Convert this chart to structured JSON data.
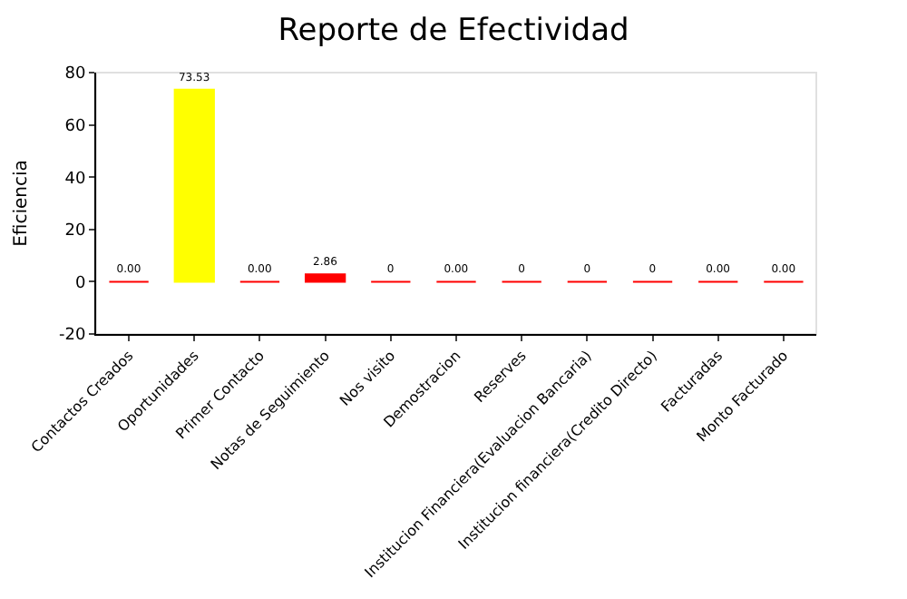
{
  "chart_data": {
    "type": "bar",
    "title": "Reporte de Efectividad",
    "ylabel": "Eficiencia",
    "categories": [
      "Contactos Creados",
      "Oportunidades",
      "Primer Contacto",
      "Notas de Seguimiento",
      "Nos visito",
      "Demostracion",
      "Reserves",
      "Institucion Financiera(Evaluacion Bancaria)",
      "Institucion financiera(Credito Directo)",
      "Facturadas",
      "Monto Facturado"
    ],
    "values": [
      0,
      73.53,
      0,
      2.86,
      0,
      0,
      0,
      0,
      0,
      0,
      0
    ],
    "value_labels": [
      "0.00",
      "73.53",
      "0.00",
      "2.86",
      "0",
      "0.00",
      "0",
      "0",
      "0",
      "0.00",
      "0.00"
    ],
    "colors": [
      "#ff0000",
      "#ffff00",
      "#ff0000",
      "#ff0000",
      "#ff0000",
      "#ff0000",
      "#ff0000",
      "#ff0000",
      "#ff0000",
      "#ff0000",
      "#ff0000"
    ],
    "ylim": [
      -20,
      80
    ],
    "yticks": [
      -20,
      0,
      20,
      40,
      60,
      80
    ],
    "grid": false,
    "legend": false
  }
}
